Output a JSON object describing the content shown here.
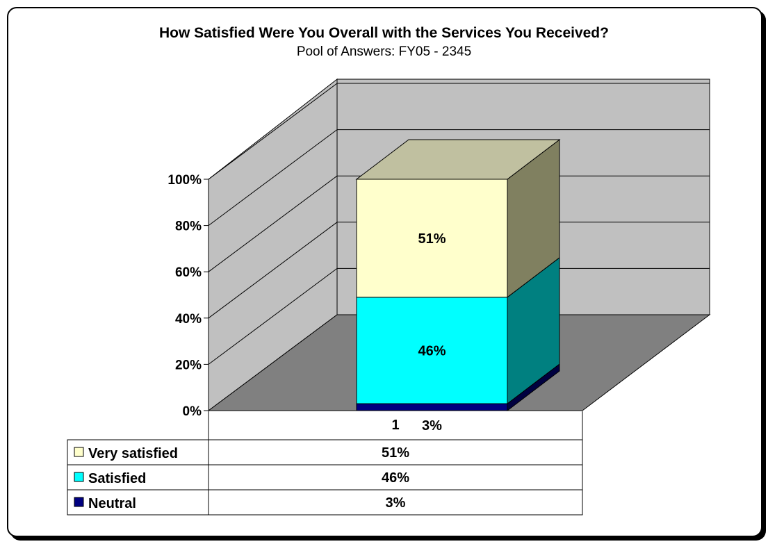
{
  "chart_data": {
    "type": "bar",
    "stacked": true,
    "three_d": true,
    "title": "How Satisfied Were You Overall with the Services You Received?",
    "subtitle": "Pool of Answers: FY05 - 2345",
    "categories": [
      "1"
    ],
    "series": [
      {
        "name": "Neutral",
        "values": [
          3
        ],
        "label": "3%",
        "color": "#000080",
        "side_color": "#000040"
      },
      {
        "name": "Satisfied",
        "values": [
          46
        ],
        "label": "46%",
        "color": "#00ffff",
        "side_color": "#008080"
      },
      {
        "name": "Very satisfied",
        "values": [
          51
        ],
        "label": "51%",
        "color": "#ffffcc",
        "side_color": "#808060"
      }
    ],
    "y_ticks": [
      "0%",
      "20%",
      "40%",
      "60%",
      "80%",
      "100%"
    ],
    "ylim": [
      0,
      100
    ],
    "grid": true,
    "legend": "data-table",
    "colors": {
      "wall": "#c0c0c0",
      "floor": "#808080",
      "grid": "#000000"
    }
  }
}
